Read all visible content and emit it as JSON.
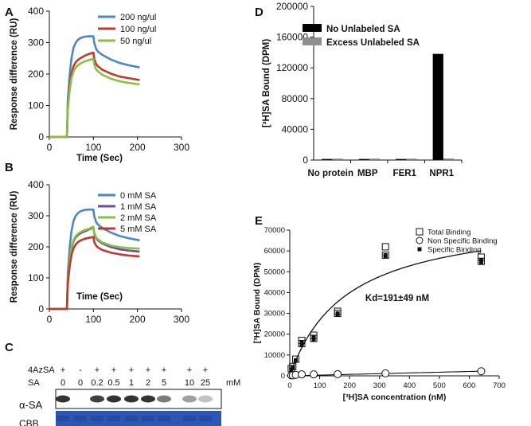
{
  "chart_data": [
    {
      "panel": "A",
      "type": "line",
      "xlabel": "Time (Sec)",
      "ylabel": "Response difference (RU)",
      "xlim": [
        0,
        300
      ],
      "ylim": [
        0,
        400
      ],
      "xticks": [
        "0",
        "100",
        "200",
        "300"
      ],
      "yticks": [
        "0",
        "100",
        "200",
        "300",
        "400"
      ],
      "legend_position": "top-right",
      "series": [
        {
          "name": "200 ng/ul",
          "color": "#4a86c8",
          "x": [
            0,
            40,
            42,
            46,
            50,
            55,
            60,
            65,
            70,
            80,
            90,
            100,
            102,
            106,
            110,
            120,
            140,
            160,
            180,
            205
          ],
          "y": [
            0,
            0,
            118,
            197,
            249,
            284,
            300,
            309,
            314,
            319,
            320,
            320,
            299,
            280,
            272,
            261,
            246,
            235,
            228,
            221
          ]
        },
        {
          "name": "100 ng/ul",
          "color": "#c0392b",
          "x": [
            0,
            40,
            42,
            46,
            50,
            55,
            60,
            65,
            70,
            80,
            90,
            100,
            102,
            106,
            110,
            120,
            140,
            160,
            180,
            205
          ],
          "y": [
            0,
            0,
            96,
            160,
            200,
            225,
            238,
            245,
            250,
            258,
            264,
            268,
            248,
            232,
            225,
            214,
            201,
            192,
            187,
            181
          ]
        },
        {
          "name": "50 ng/ul",
          "color": "#8cbf3f",
          "x": [
            0,
            40,
            42,
            46,
            50,
            55,
            60,
            65,
            70,
            80,
            90,
            100,
            102,
            106,
            110,
            120,
            140,
            160,
            180,
            205
          ],
          "y": [
            0,
            0,
            88,
            147,
            186,
            209,
            221,
            228,
            233,
            240,
            245,
            248,
            230,
            215,
            209,
            198,
            185,
            177,
            172,
            167
          ]
        }
      ]
    },
    {
      "panel": "B",
      "type": "line",
      "xlabel": "Time (Sec)",
      "ylabel": "Response difference (RU)",
      "xlim": [
        0,
        300
      ],
      "ylim": [
        0,
        400
      ],
      "xticks": [
        "0",
        "100",
        "200",
        "300"
      ],
      "yticks": [
        "0",
        "100",
        "200",
        "300",
        "400"
      ],
      "legend_position": "top-right",
      "series": [
        {
          "name": "0 mM SA",
          "color": "#4a86c8",
          "x": [
            0,
            40,
            42,
            46,
            50,
            55,
            60,
            65,
            70,
            80,
            90,
            100,
            102,
            106,
            110,
            120,
            140,
            160,
            180,
            205
          ],
          "y": [
            0,
            0,
            118,
            197,
            249,
            284,
            300,
            309,
            314,
            319,
            320,
            320,
            299,
            280,
            272,
            261,
            246,
            235,
            228,
            221
          ]
        },
        {
          "name": "1 mM SA",
          "color": "#6c4e9e",
          "x": [
            0,
            40,
            42,
            46,
            50,
            55,
            60,
            65,
            70,
            80,
            90,
            100,
            102,
            106,
            110,
            120,
            140,
            160,
            180,
            205
          ],
          "y": [
            0,
            0,
            92,
            154,
            194,
            218,
            231,
            238,
            243,
            250,
            256,
            262,
            243,
            228,
            221,
            211,
            199,
            192,
            188,
            185
          ]
        },
        {
          "name": "2 mM SA",
          "color": "#8cbf3f",
          "x": [
            0,
            40,
            42,
            46,
            50,
            55,
            60,
            65,
            70,
            80,
            90,
            100,
            102,
            106,
            110,
            120,
            140,
            160,
            180,
            205
          ],
          "y": [
            0,
            0,
            94,
            157,
            197,
            222,
            235,
            242,
            247,
            254,
            258,
            265,
            246,
            231,
            224,
            214,
            204,
            199,
            196,
            194
          ]
        },
        {
          "name": "5 mM SA",
          "color": "#c0392b",
          "x": [
            0,
            40,
            42,
            46,
            50,
            55,
            60,
            65,
            70,
            80,
            90,
            100,
            102,
            106,
            110,
            120,
            140,
            160,
            180,
            205
          ],
          "y": [
            0,
            0,
            82,
            137,
            173,
            196,
            208,
            215,
            220,
            226,
            229,
            232,
            216,
            204,
            198,
            190,
            181,
            176,
            172,
            169
          ]
        }
      ]
    },
    {
      "panel": "D",
      "type": "bar",
      "ylabel": "[³H]SA Bound (DPM)",
      "ylim": [
        0,
        200000
      ],
      "yticks": [
        "0",
        "40000",
        "80000",
        "120000",
        "160000",
        "200000"
      ],
      "categories": [
        "No protein",
        "MBP",
        "FER1",
        "NPR1"
      ],
      "legend_position": "top-left",
      "series": [
        {
          "name": "No Unlabeled SA",
          "color": "#000000",
          "values": [
            500,
            500,
            300,
            138000
          ]
        },
        {
          "name": "Excess Unlabeled SA",
          "color": "#8f8f8f",
          "values": [
            500,
            500,
            300,
            1500
          ]
        }
      ]
    },
    {
      "panel": "E",
      "type": "scatter",
      "xlabel": "[³H]SA concentration (nM)",
      "ylabel": "[³H]SA Bound (DPM)",
      "xlim": [
        0,
        700
      ],
      "ylim": [
        0,
        70000
      ],
      "xticks": [
        "0",
        "100",
        "200",
        "300",
        "400",
        "500",
        "600",
        "700"
      ],
      "yticks": [
        "0",
        "10000",
        "20000",
        "30000",
        "40000",
        "50000",
        "60000",
        "70000"
      ],
      "legend_position": "top-right",
      "annotation": "Kd=191±49 nM",
      "fit": {
        "Bmax": 78000,
        "Kd": 191,
        "nonspecific_slope": 3.5
      },
      "series": [
        {
          "name": "Total Binding",
          "marker": "open-square",
          "x": [
            5,
            10,
            20,
            40,
            40,
            80,
            80,
            160,
            160,
            320,
            320,
            640,
            640
          ],
          "y": [
            3500,
            4500,
            8000,
            15500,
            17000,
            18000,
            19500,
            30000,
            31000,
            58000,
            62000,
            55000,
            57000
          ]
        },
        {
          "name": "Non Specific Binding",
          "marker": "open-circle",
          "x": [
            5,
            10,
            20,
            40,
            80,
            160,
            320,
            640
          ],
          "y": [
            200,
            300,
            500,
            700,
            700,
            800,
            1200,
            2200
          ]
        },
        {
          "name": "Specific Binding",
          "marker": "filled-square",
          "x": [
            5,
            10,
            20,
            40,
            40,
            80,
            80,
            160,
            160,
            320,
            320,
            640,
            640
          ],
          "y": [
            3000,
            4000,
            7500,
            15000,
            16000,
            17500,
            18500,
            29500,
            30000,
            57500,
            58000,
            54500,
            55500
          ]
        }
      ]
    }
  ],
  "panels": {
    "a": "A",
    "b": "B",
    "c": "C",
    "d": "D",
    "e": "E"
  },
  "blot": {
    "row1_label": "4AzSA",
    "row2_label": "SA",
    "unit": "mM",
    "azsa_marks": [
      "+",
      "-",
      "+",
      "+",
      "+",
      "+",
      "+",
      "+",
      "+"
    ],
    "sa_values": [
      "0",
      "0",
      "0.2",
      "0.5",
      "1",
      "2",
      "5",
      "10",
      "25"
    ],
    "band_intensity": [
      0.85,
      0.0,
      0.8,
      0.85,
      0.85,
      0.85,
      0.55,
      0.4,
      0.25
    ],
    "blot_label": "α-SA",
    "loading_label": "CBB",
    "loading_color": "#2d56b3"
  }
}
